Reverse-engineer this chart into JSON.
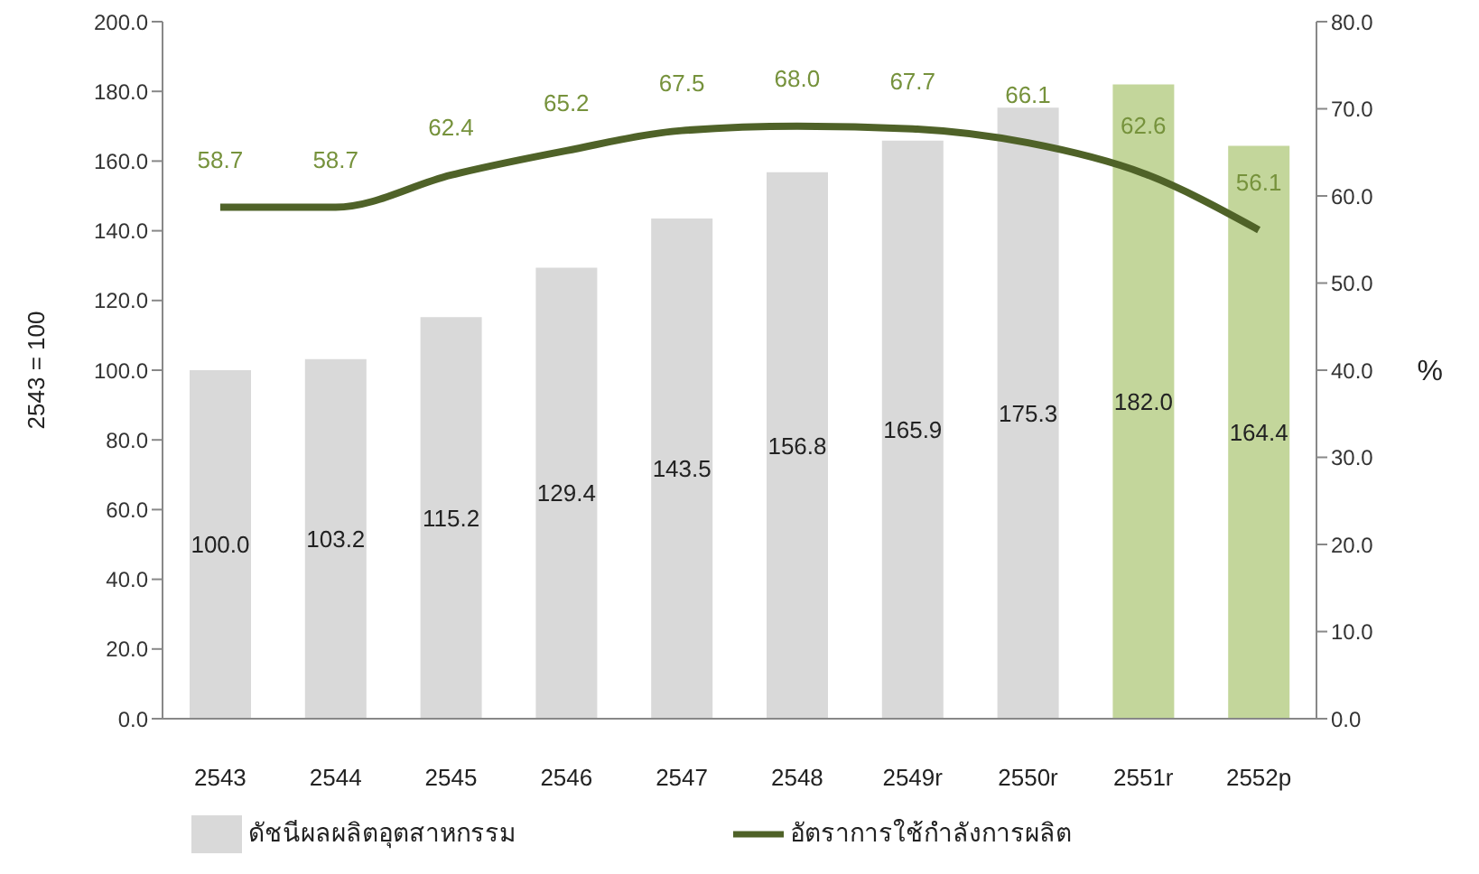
{
  "chart_data": {
    "type": "bar",
    "categories": [
      "2543",
      "2544",
      "2545",
      "2546",
      "2547",
      "2548",
      "2549r",
      "2550r",
      "2551r",
      "2552p"
    ],
    "ylabel": "2543 = 100",
    "y2label": "%",
    "series": [
      {
        "name": "ดัชนีผลผลิตอุตสาหกรรม",
        "color": "#d9d9d9",
        "colors": [
          "#d9d9d9",
          "#d9d9d9",
          "#d9d9d9",
          "#d9d9d9",
          "#d9d9d9",
          "#d9d9d9",
          "#d9d9d9",
          "#d9d9d9",
          "#c3d69b",
          "#c3d69b"
        ],
        "values": [
          100.0,
          103.2,
          115.2,
          129.4,
          143.5,
          156.8,
          165.9,
          175.3,
          182.0,
          164.4
        ],
        "value_labels": [
          "100.0",
          "103.2",
          "115.2",
          "129.4",
          "143.5",
          "156.8",
          "165.9",
          "175.3",
          "182.0",
          "164.4"
        ]
      },
      {
        "name": "อัตราการใช้กำลังการผลิต",
        "type": "line",
        "axis": "y2",
        "color": "#4f6228",
        "values": [
          58.7,
          58.7,
          62.4,
          65.2,
          67.5,
          68.0,
          67.7,
          66.1,
          62.6,
          56.1
        ],
        "value_labels": [
          "58.7",
          "58.7",
          "62.4",
          "65.2",
          "67.5",
          "68.0",
          "67.7",
          "66.1",
          "62.6",
          "56.1"
        ]
      }
    ],
    "ylim": [
      0,
      200
    ],
    "yticks": [
      {
        "value": 0,
        "label": "0.0"
      },
      {
        "value": 20,
        "label": "20.0"
      },
      {
        "value": 40,
        "label": "40.0"
      },
      {
        "value": 60,
        "label": "60.0"
      },
      {
        "value": 80,
        "label": "80.0"
      },
      {
        "value": 100,
        "label": "100.0"
      },
      {
        "value": 120,
        "label": "120.0"
      },
      {
        "value": 140,
        "label": "140.0"
      },
      {
        "value": 160,
        "label": "160.0"
      },
      {
        "value": 180,
        "label": "180.0"
      },
      {
        "value": 200,
        "label": "200.0"
      }
    ],
    "y2lim": [
      0,
      80
    ],
    "y2ticks": [
      {
        "value": 0,
        "label": "0.0"
      },
      {
        "value": 10,
        "label": "10.0"
      },
      {
        "value": 20,
        "label": "20.0"
      },
      {
        "value": 30,
        "label": "30.0"
      },
      {
        "value": 40,
        "label": "40.0"
      },
      {
        "value": 50,
        "label": "50.0"
      },
      {
        "value": 60,
        "label": "60.0"
      },
      {
        "value": 70,
        "label": "70.0"
      },
      {
        "value": 80,
        "label": "80.0"
      }
    ],
    "legend": "bottom",
    "grid": false,
    "marker": "none"
  }
}
